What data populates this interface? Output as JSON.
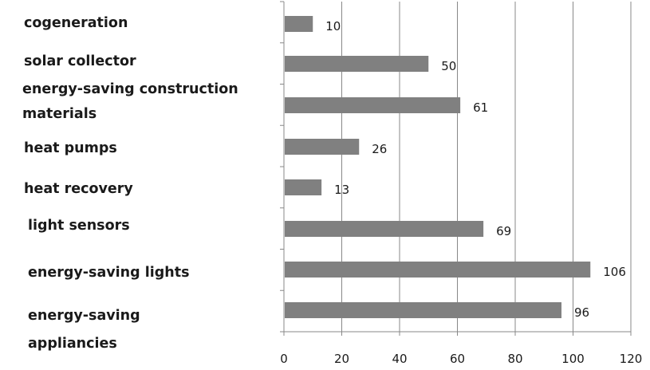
{
  "chart_data": {
    "type": "bar",
    "orientation": "horizontal",
    "categories": [
      "cogeneration",
      "solar collector",
      "energy-saving construction materials",
      "heat pumps",
      "heat recovery",
      "light sensors",
      "energy-saving lights",
      "energy-saving appliancies"
    ],
    "values": [
      10,
      50,
      61,
      26,
      13,
      69,
      106,
      96
    ],
    "data_labels": [
      "10",
      "50",
      "61",
      "26",
      "13",
      "69",
      "106",
      "96"
    ],
    "xlim": [
      0,
      120
    ],
    "x_ticks": [
      0,
      20,
      40,
      60,
      80,
      100,
      120
    ],
    "x_tick_labels": [
      "0",
      "20",
      "40",
      "60",
      "80",
      "100",
      "120"
    ],
    "grid": "vertical",
    "legend": "none",
    "colors": {
      "bar": "#808080",
      "grid": "#888888",
      "axis": "#888888",
      "text": "#1a1a1a"
    }
  }
}
